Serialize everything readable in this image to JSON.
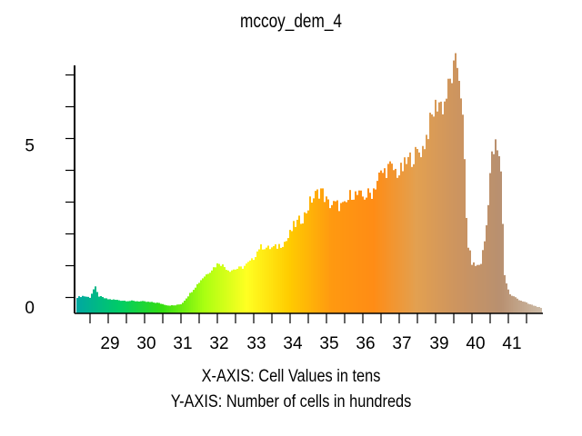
{
  "title": "mccoy_dem_4",
  "x_caption": "X-AXIS: Cell Values in tens",
  "y_caption": "Y-AXIS: Number of cells in hundreds",
  "chart_data": {
    "type": "bar",
    "title": "mccoy_dem_4",
    "xlabel": "X-AXIS: Cell Values in tens",
    "ylabel": "Y-AXIS: Number of cells in hundreds",
    "x_ticks": [
      29,
      30,
      31,
      32,
      33,
      34,
      35,
      36,
      37,
      39,
      40,
      41
    ],
    "y_ticks": [
      0,
      5
    ],
    "xlim": [
      28.1,
      41.8
    ],
    "ylim": [
      0,
      7.8
    ],
    "grid": false,
    "bins_note": "histogram of cell values; heights in hundreds of cells",
    "profile": [
      [
        28.1,
        0.5
      ],
      [
        28.3,
        0.55
      ],
      [
        28.5,
        0.5
      ],
      [
        28.65,
        0.85
      ],
      [
        28.75,
        0.55
      ],
      [
        29.0,
        0.45
      ],
      [
        29.5,
        0.4
      ],
      [
        30.0,
        0.38
      ],
      [
        30.5,
        0.33
      ],
      [
        30.8,
        0.25
      ],
      [
        31.0,
        0.25
      ],
      [
        31.2,
        0.3
      ],
      [
        31.5,
        0.7
      ],
      [
        31.8,
        1.1
      ],
      [
        32.0,
        1.3
      ],
      [
        32.3,
        1.6
      ],
      [
        32.6,
        1.35
      ],
      [
        33.0,
        1.45
      ],
      [
        33.3,
        1.7
      ],
      [
        33.5,
        2.1
      ],
      [
        33.8,
        2.05
      ],
      [
        34.0,
        2.1
      ],
      [
        34.3,
        2.3
      ],
      [
        34.5,
        2.75
      ],
      [
        34.8,
        3.05
      ],
      [
        35.0,
        3.55
      ],
      [
        35.3,
        3.9
      ],
      [
        35.5,
        3.45
      ],
      [
        35.8,
        3.4
      ],
      [
        36.0,
        3.35
      ],
      [
        36.2,
        3.8
      ],
      [
        36.5,
        3.65
      ],
      [
        36.8,
        3.8
      ],
      [
        37.0,
        4.3
      ],
      [
        37.3,
        4.6
      ],
      [
        37.6,
        4.4
      ],
      [
        37.9,
        4.85
      ],
      [
        38.1,
        5.0
      ],
      [
        38.3,
        5.2
      ],
      [
        38.45,
        5.75
      ],
      [
        38.6,
        6.3
      ],
      [
        38.75,
        6.7
      ],
      [
        38.9,
        6.5
      ],
      [
        39.0,
        6.9
      ],
      [
        39.15,
        7.45
      ],
      [
        39.3,
        7.85
      ],
      [
        39.4,
        7.35
      ],
      [
        39.5,
        5.5
      ],
      [
        39.6,
        2.3
      ],
      [
        39.75,
        1.55
      ],
      [
        39.9,
        1.5
      ],
      [
        40.0,
        1.55
      ],
      [
        40.15,
        2.5
      ],
      [
        40.3,
        4.8
      ],
      [
        40.45,
        5.3
      ],
      [
        40.6,
        4.5
      ],
      [
        40.7,
        1.2
      ],
      [
        40.85,
        0.6
      ],
      [
        41.1,
        0.45
      ],
      [
        41.4,
        0.3
      ],
      [
        41.7,
        0.2
      ],
      [
        41.8,
        0.15
      ]
    ],
    "color_stops": [
      "#00a8a0",
      "#00cc66",
      "#33dd11",
      "#aaff11",
      "#ffff22",
      "#ffcc00",
      "#ff9910",
      "#ff8c15",
      "#e3a050",
      "#cc9460",
      "#b89070",
      "#cdbca8"
    ]
  }
}
